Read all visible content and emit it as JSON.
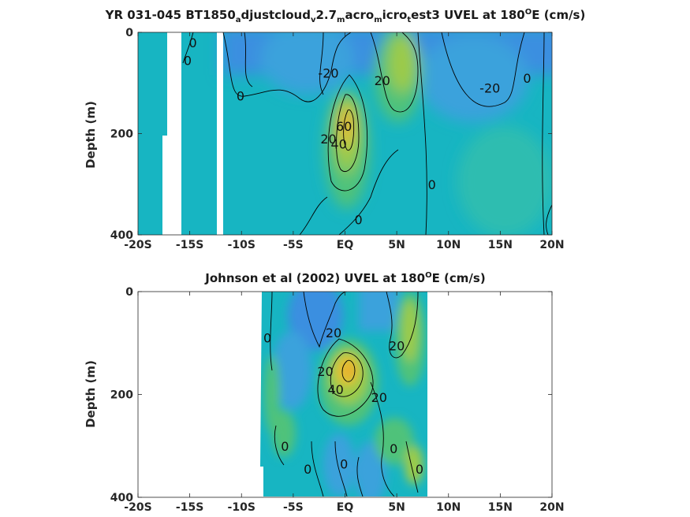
{
  "colors": {
    "deep_blue": "#3b8fe0",
    "blue": "#3aa2dc",
    "teal": "#17b5c2",
    "green": "#4fc27a",
    "yellow_green": "#9ccb4a",
    "yellow": "#e0c235",
    "orange": "#eaa82a",
    "contour": "#000000"
  },
  "chart_data": [
    {
      "type": "heatmap",
      "panel": "top",
      "title": {
        "prefix": "YR 031-045 BT1850",
        "s1": "a",
        "t1": "djustcloud",
        "s2": "v",
        "t2": "2.7",
        "s3": "m",
        "t3": "acro",
        "s4": "m",
        "t4": "icro",
        "s5": "t",
        "t5": "est3 UVEL at 180",
        "deg": "O",
        "suffix": "E (cm/s)"
      },
      "xlabel": "",
      "ylabel": "Depth (m)",
      "x_ticks": [
        "-20S",
        "-15S",
        "-10S",
        "-5S",
        "EQ",
        "5N",
        "10N",
        "15N",
        "20N"
      ],
      "x_range": [
        -20,
        20
      ],
      "y_ticks": [
        "0",
        "200",
        "400"
      ],
      "y_range": [
        0,
        400
      ],
      "y_reversed": true,
      "missing_data_bands_lat": [
        [
          -17.6,
          -16.1
        ],
        [
          -12.5,
          -11.8
        ]
      ],
      "contour_labels": [
        {
          "text": "0",
          "lat": -14.7,
          "depth": 20
        },
        {
          "text": "0",
          "lat": -15.2,
          "depth": 55
        },
        {
          "text": "0",
          "lat": -10.1,
          "depth": 125
        },
        {
          "text": "-20",
          "lat": -1.6,
          "depth": 80
        },
        {
          "text": "60",
          "lat": -0.1,
          "depth": 185
        },
        {
          "text": "20",
          "lat": -1.6,
          "depth": 210
        },
        {
          "text": "40",
          "lat": -0.6,
          "depth": 220
        },
        {
          "text": "20",
          "lat": 3.6,
          "depth": 95
        },
        {
          "text": "-20",
          "lat": 14.0,
          "depth": 110
        },
        {
          "text": "0",
          "lat": 17.6,
          "depth": 90
        },
        {
          "text": "0",
          "lat": 8.4,
          "depth": 300
        },
        {
          "text": "0",
          "lat": 1.3,
          "depth": 370
        }
      ]
    },
    {
      "type": "heatmap",
      "panel": "bottom",
      "title": {
        "prefix": "Johnson et al (2002) UVEL at 180",
        "deg": "O",
        "suffix": "E (cm/s)"
      },
      "xlabel": "",
      "ylabel": "Depth (m)",
      "x_ticks": [
        "-20S",
        "-15S",
        "-10S",
        "-5S",
        "EQ",
        "5N",
        "10N",
        "15N",
        "20N"
      ],
      "x_range": [
        -20,
        20
      ],
      "y_ticks": [
        "0",
        "200",
        "400"
      ],
      "y_range": [
        0,
        400
      ],
      "y_reversed": true,
      "data_extent_lat": [
        -8,
        8
      ],
      "contour_labels": [
        {
          "text": "0",
          "lat": -7.5,
          "depth": 90
        },
        {
          "text": "20",
          "lat": -1.1,
          "depth": 80
        },
        {
          "text": "20",
          "lat": 5.0,
          "depth": 105
        },
        {
          "text": "20",
          "lat": -1.9,
          "depth": 155
        },
        {
          "text": "40",
          "lat": -0.9,
          "depth": 190
        },
        {
          "text": "20",
          "lat": 3.3,
          "depth": 205
        },
        {
          "text": "0",
          "lat": -5.8,
          "depth": 300
        },
        {
          "text": "0",
          "lat": -3.6,
          "depth": 345
        },
        {
          "text": "0",
          "lat": -0.1,
          "depth": 335
        },
        {
          "text": "0",
          "lat": 4.7,
          "depth": 305
        },
        {
          "text": "0",
          "lat": 7.2,
          "depth": 345
        }
      ]
    }
  ]
}
